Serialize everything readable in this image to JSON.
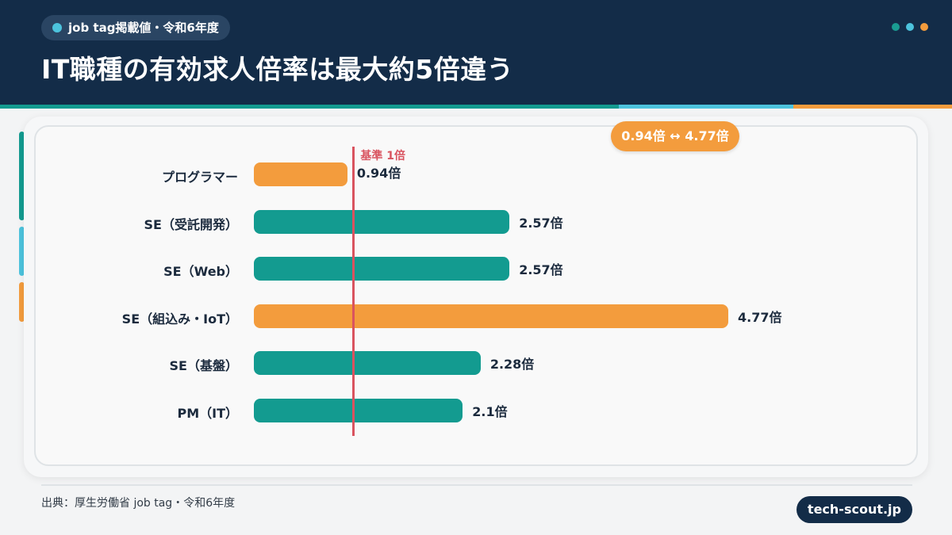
{
  "header": {
    "badge": "job tag掲載値・令和6年度",
    "title": "IT職種の有効求人倍率は最大約5倍違う",
    "dot_colors": [
      "#1a9c92",
      "#4cc3dd",
      "#f39c3d"
    ]
  },
  "range_badge": "0.94倍 ↔ 4.77倍",
  "chart_data": {
    "type": "bar",
    "orientation": "horizontal",
    "categories": [
      "プログラマー",
      "SE（受託開発）",
      "SE（Web）",
      "SE（組込み・IoT）",
      "SE（基盤）",
      "PM（IT）"
    ],
    "values": [
      0.94,
      2.57,
      2.57,
      4.77,
      2.28,
      2.1
    ],
    "value_labels": [
      "0.94倍",
      "2.57倍",
      "2.57倍",
      "4.77倍",
      "2.28倍",
      "2.1倍"
    ],
    "highlight": [
      true,
      false,
      false,
      true,
      false,
      false
    ],
    "colors": {
      "default": "#139b90",
      "highlight": "#f39c3d",
      "reference": "#d9535f"
    },
    "reference": {
      "value": 1,
      "label": "基準 1倍"
    },
    "xlim": [
      0,
      4.77
    ],
    "grid": false
  },
  "footer": {
    "source": "出典：厚生労働省 job tag・令和6年度",
    "brand": "tech-scout.jp"
  }
}
